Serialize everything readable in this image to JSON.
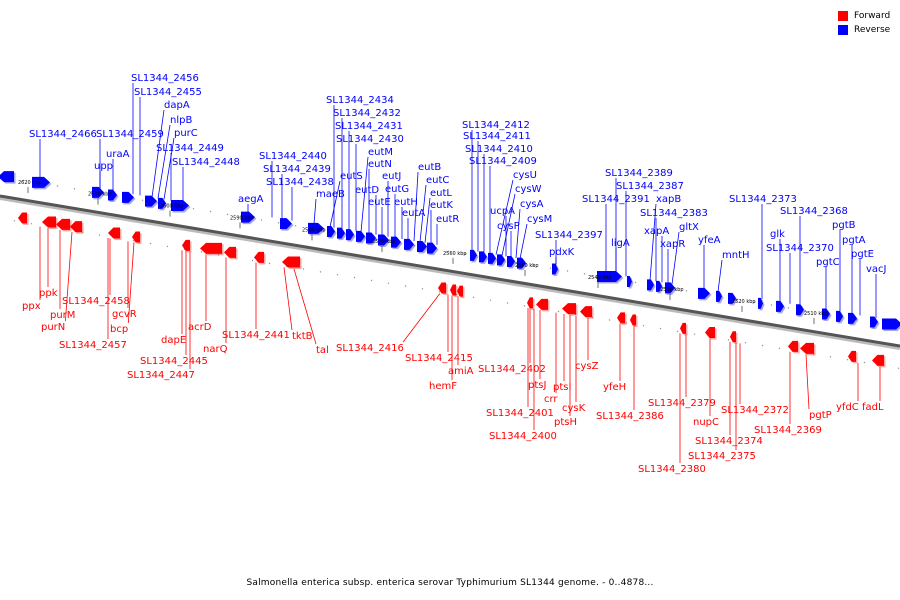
{
  "legend": {
    "forward_label": "Forward",
    "reverse_label": "Reverse",
    "forward_color": "#ff0000",
    "reverse_color": "#0000ff"
  },
  "caption": "Salmonella enterica subsp. enterica serovar Typhimurium SL1344 genome. - 0..4878...",
  "scale_labels": [
    "2620 kbp",
    "2610 kbp",
    "2600 kbp",
    "2590 kbp",
    "2580 kbp",
    "2570 kbp",
    "2560 kbp",
    "2550 kbp",
    "2540 kbp",
    "2530 kbp",
    "2520 kbp",
    "2510 kbp"
  ],
  "reverse_genes": [
    "SL1344_2466",
    "SL1344_2459",
    "upp",
    "uraA",
    "SL1344_2456",
    "SL1344_2455",
    "dapA",
    "nlpB",
    "purC",
    "SL1344_2449",
    "SL1344_2448",
    "aegA",
    "SL1344_2440",
    "SL1344_2439",
    "SL1344_2438",
    "maeB",
    "eutS",
    "SL1344_2434",
    "SL1344_2432",
    "SL1344_2431",
    "SL1344_2430",
    "eutM",
    "eutN",
    "eutD",
    "eutE",
    "eutJ",
    "eutG",
    "eutH",
    "eutA",
    "eutB",
    "eutC",
    "eutL",
    "eutK",
    "eutR",
    "SL1344_2412",
    "SL1344_2411",
    "SL1344_2410",
    "SL1344_2409",
    "cysU",
    "cysW",
    "ucpA",
    "cysP",
    "cysA",
    "cysM",
    "SL1344_2397",
    "pdxK",
    "SL1344_2391",
    "SL1344_2389",
    "SL1344_2387",
    "ligA",
    "xapB",
    "SL1344_2383",
    "xapA",
    "gltX",
    "xapR",
    "yfeA",
    "mntH",
    "SL1344_2373",
    "glk",
    "SL1344_2370",
    "SL1344_2368",
    "pgtC",
    "pgtB",
    "pgtA",
    "pgtE",
    "vacJ"
  ],
  "forward_genes": [
    "ppx",
    "ppk",
    "purM",
    "purN",
    "SL1344_2458",
    "gcvR",
    "bcp",
    "SL1344_2457",
    "dapE",
    "SL1344_2445",
    "SL1344_2447",
    "acrD",
    "narQ",
    "SL1344_2441",
    "tktB",
    "tal",
    "SL1344_2416",
    "SL1344_2415",
    "amiA",
    "hemF",
    "SL1344_2402",
    "ptsJ",
    "crr",
    "ptsI",
    "cysK",
    "cysZ",
    "ptsH",
    "SL1344_2401",
    "SL1344_2400",
    "yfeH",
    "SL1344_2386",
    "SL1344_2379",
    "nupC",
    "SL1344_2372",
    "SL1344_2374",
    "SL1344_2375",
    "SL1344_2380",
    "SL1344_2369",
    "pgtP",
    "yfdC",
    "fadL"
  ]
}
